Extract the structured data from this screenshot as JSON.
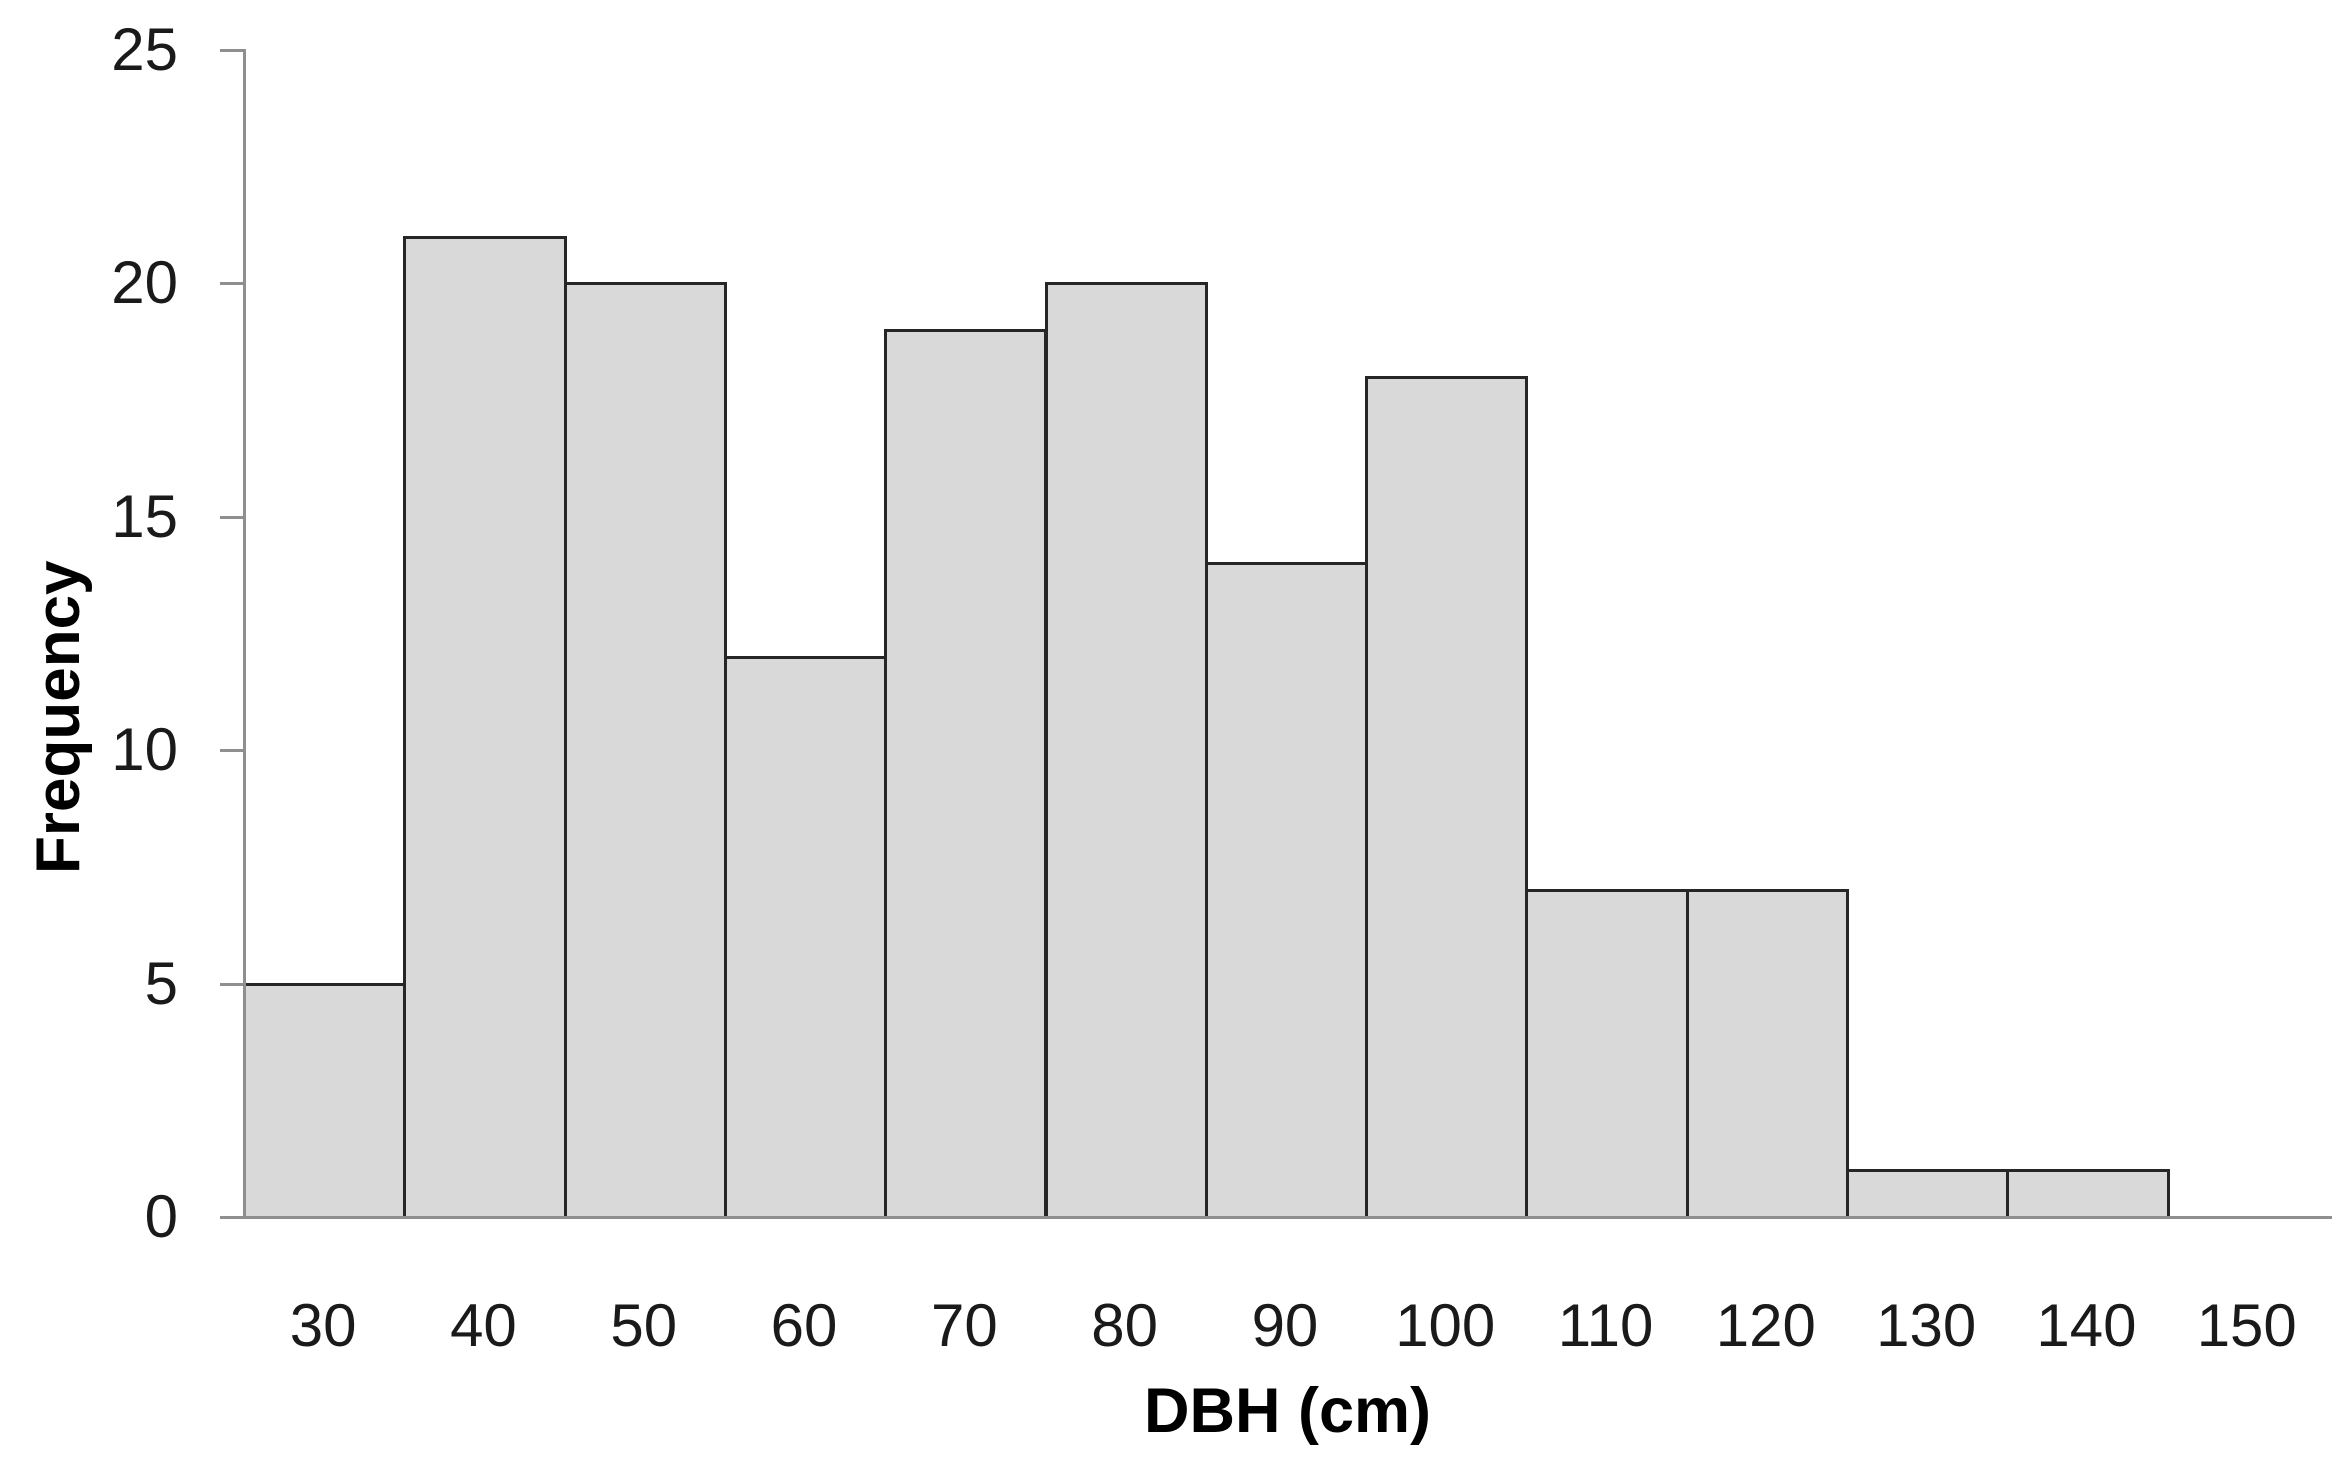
{
  "chart_data": {
    "type": "bar",
    "subtype": "histogram",
    "title": "",
    "xlabel": "DBH (cm)",
    "ylabel": "Frequency",
    "categories": [
      30,
      40,
      50,
      60,
      70,
      80,
      90,
      100,
      110,
      120,
      130,
      140,
      150
    ],
    "values": [
      5,
      21,
      20,
      12,
      19,
      20,
      14,
      18,
      7,
      7,
      1,
      1,
      0
    ],
    "bin_width_cm": 10,
    "ylim": [
      0,
      25
    ],
    "yticks": [
      0,
      5,
      10,
      15,
      20,
      25
    ],
    "grid": "off",
    "legend": "none",
    "colors": {
      "bar_fill": "#D9D9D9",
      "bar_border": "#262626",
      "axis_line": "#8F8F8F",
      "text": "#1a1a1a"
    }
  }
}
